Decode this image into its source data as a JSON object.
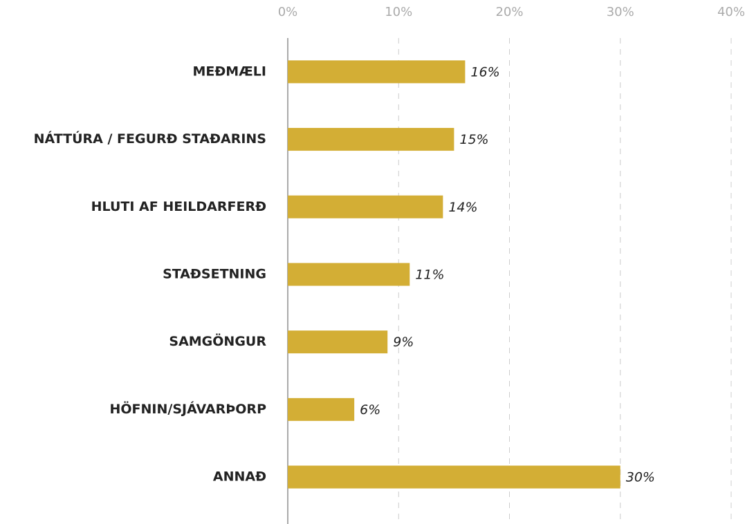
{
  "chart_data": {
    "type": "bar",
    "orientation": "horizontal",
    "categories": [
      "MEÐMÆLI",
      "NÁTTÚRA / FEGURÐ STAÐARINS",
      "HLUTI AF HEILDARFERÐ",
      "STAÐSETNING",
      "SAMGÖNGUR",
      "HÖFNIN/SJÁVARÞORP",
      "ANNAÐ"
    ],
    "values": [
      16,
      15,
      14,
      11,
      9,
      6,
      30
    ],
    "value_labels": [
      "16%",
      "15%",
      "14%",
      "11%",
      "9%",
      "6%",
      "30%"
    ],
    "color": "#d3ae35",
    "xlim": [
      0,
      40
    ],
    "xticks": [
      {
        "value": 0,
        "label": "0%"
      },
      {
        "value": 10,
        "label": "10%"
      },
      {
        "value": 20,
        "label": "20%"
      },
      {
        "value": 30,
        "label": "30%"
      },
      {
        "value": 40,
        "label": "40%"
      }
    ],
    "grid": true
  }
}
